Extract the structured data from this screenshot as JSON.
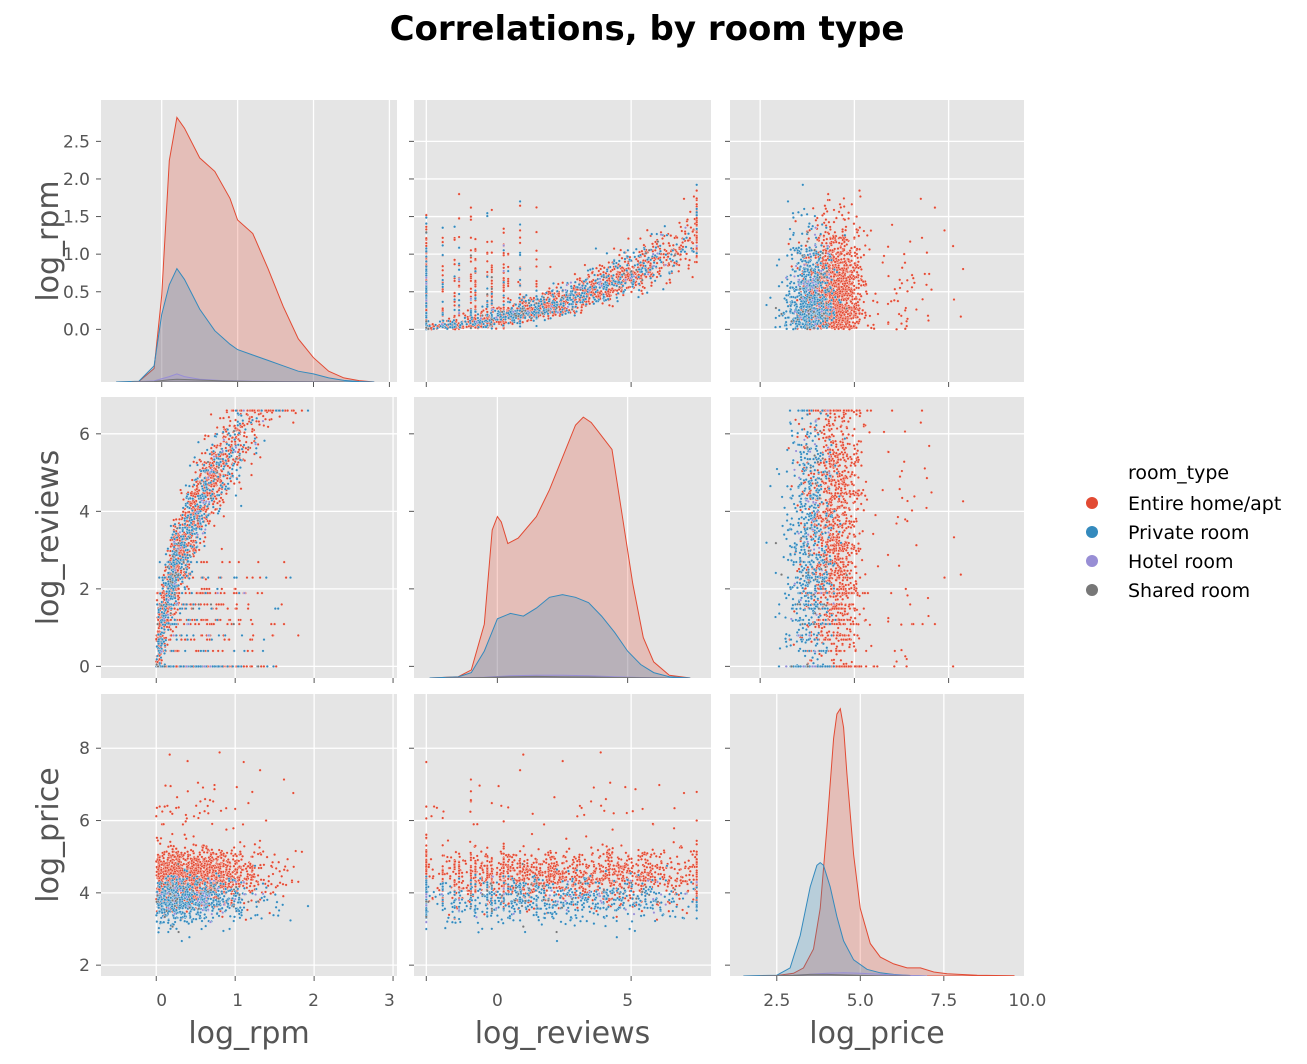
{
  "chart_data": {
    "type": "scatter",
    "title": "Correlations, by room type",
    "variables": [
      "log_rpm",
      "log_reviews",
      "log_price"
    ],
    "diagonal": "kde",
    "off_diagonal": "scatter",
    "grid": true,
    "legend": {
      "title": "room_type",
      "position": "right",
      "entries": [
        {
          "name": "Entire home/apt",
          "color": "#e24a33"
        },
        {
          "name": "Private room",
          "color": "#348abd"
        },
        {
          "name": "Hotel room",
          "color": "#988ed5"
        },
        {
          "name": "Shared room",
          "color": "#777777"
        }
      ]
    },
    "axes": {
      "log_rpm": {
        "range": [
          -0.7,
          3.05
        ],
        "ticks": [
          0,
          1,
          2,
          3
        ],
        "tick_labels": [
          "0",
          "1",
          "2",
          "3"
        ]
      },
      "log_reviews": {
        "range": [
          -0.3,
          6.95
        ],
        "ticks": [
          0,
          2,
          4,
          6
        ],
        "tick_labels": [
          "0",
          "2",
          "4",
          "6"
        ]
      },
      "log_price": {
        "range": [
          1.7,
          9.5
        ],
        "ticks": [
          2,
          4,
          6,
          8
        ],
        "tick_labels": [
          "2",
          "4",
          "6",
          "8"
        ]
      }
    },
    "row_tick_labels": {
      "log_rpm": [
        "0.0",
        "0.5",
        "1.0",
        "1.5",
        "2.0",
        "2.5"
      ],
      "log_reviews": [
        "0",
        "2",
        "4",
        "6"
      ],
      "log_price": [
        "2",
        "4",
        "6",
        "8"
      ]
    },
    "bottom_axes": {
      "log_rpm": {
        "range": [
          -0.8,
          3.1
        ],
        "tick_labels": [
          "0",
          "1",
          "2",
          "3"
        ]
      },
      "log_reviews": {
        "range": [
          -3.2,
          8.2
        ],
        "tick_labels": [
          "0",
          "5"
        ]
      },
      "log_price": {
        "range": [
          1.1,
          9.9
        ],
        "tick_labels": [
          "2.5",
          "5.0",
          "7.5",
          "10.0"
        ]
      }
    },
    "kde": {
      "log_rpm": {
        "ylim": [
          0,
          1.0
        ],
        "series": [
          {
            "name": "Entire home/apt",
            "x": [
              -0.6,
              -0.3,
              -0.1,
              0.0,
              0.1,
              0.2,
              0.3,
              0.5,
              0.7,
              0.9,
              1.0,
              1.2,
              1.4,
              1.6,
              1.8,
              2.0,
              2.2,
              2.4,
              2.6,
              2.8
            ],
            "y": [
              0,
              0.002,
              0.05,
              0.32,
              0.82,
              0.98,
              0.94,
              0.83,
              0.78,
              0.68,
              0.6,
              0.55,
              0.42,
              0.28,
              0.16,
              0.09,
              0.04,
              0.015,
              0.005,
              0
            ]
          },
          {
            "name": "Private room",
            "x": [
              -0.6,
              -0.3,
              -0.1,
              0.0,
              0.1,
              0.2,
              0.3,
              0.5,
              0.7,
              0.9,
              1.0,
              1.2,
              1.4,
              1.6,
              1.8,
              2.0,
              2.2,
              2.4,
              2.6,
              2.8
            ],
            "y": [
              0,
              0.003,
              0.06,
              0.25,
              0.36,
              0.42,
              0.38,
              0.27,
              0.19,
              0.14,
              0.12,
              0.1,
              0.08,
              0.06,
              0.04,
              0.03,
              0.015,
              0.006,
              0.002,
              0
            ]
          },
          {
            "name": "Hotel room",
            "x": [
              -0.4,
              -0.1,
              0.1,
              0.2,
              0.3,
              0.5,
              0.8,
              1.2,
              1.6,
              2.0,
              2.4
            ],
            "y": [
              0,
              0.004,
              0.02,
              0.03,
              0.02,
              0.01,
              0.005,
              0.003,
              0.002,
              0.001,
              0
            ]
          },
          {
            "name": "Shared room",
            "x": [
              -0.4,
              -0.1,
              0.1,
              0.2,
              0.4,
              0.8,
              1.2,
              1.6,
              2.0,
              2.4
            ],
            "y": [
              0,
              0.002,
              0.008,
              0.01,
              0.008,
              0.004,
              0.002,
              0.001,
              0.0005,
              0
            ]
          }
        ]
      },
      "log_reviews": {
        "ylim": [
          0,
          1.0
        ],
        "series": [
          {
            "name": "Entire home/apt",
            "x": [
              -2.6,
              -1.5,
              -1.0,
              -0.5,
              -0.2,
              0.0,
              0.15,
              0.4,
              0.8,
              1.5,
              2.0,
              2.5,
              3.0,
              3.3,
              3.6,
              4.0,
              4.4,
              4.8,
              5.2,
              5.6,
              6.0,
              6.6,
              7.4
            ],
            "y": [
              0,
              0.005,
              0.03,
              0.2,
              0.55,
              0.6,
              0.58,
              0.5,
              0.52,
              0.6,
              0.7,
              0.82,
              0.94,
              0.97,
              0.95,
              0.9,
              0.85,
              0.6,
              0.35,
              0.15,
              0.06,
              0.01,
              0
            ]
          },
          {
            "name": "Private room",
            "x": [
              -2.6,
              -1.5,
              -1.0,
              -0.5,
              0.0,
              0.5,
              1.0,
              1.5,
              2.0,
              2.5,
              3.0,
              3.5,
              4.0,
              4.5,
              5.0,
              5.5,
              6.0,
              6.6,
              7.4
            ],
            "y": [
              0,
              0.004,
              0.02,
              0.1,
              0.22,
              0.24,
              0.23,
              0.26,
              0.3,
              0.31,
              0.3,
              0.28,
              0.23,
              0.17,
              0.1,
              0.05,
              0.02,
              0.005,
              0
            ]
          },
          {
            "name": "Hotel room",
            "x": [
              -2.0,
              -0.5,
              0.5,
              1.5,
              2.5,
              3.5,
              4.5,
              5.5,
              6.5
            ],
            "y": [
              0,
              0.003,
              0.008,
              0.01,
              0.01,
              0.008,
              0.005,
              0.002,
              0
            ]
          },
          {
            "name": "Shared room",
            "x": [
              -2.0,
              -0.5,
              0.5,
              1.5,
              2.5,
              3.5,
              4.5,
              5.5,
              6.5
            ],
            "y": [
              0,
              0.002,
              0.005,
              0.006,
              0.005,
              0.004,
              0.002,
              0.001,
              0
            ]
          }
        ]
      },
      "log_price": {
        "ylim": [
          0,
          1.0
        ],
        "series": [
          {
            "name": "Entire home/apt",
            "x": [
              1.5,
              2.5,
              3.0,
              3.3,
              3.6,
              3.8,
              4.0,
              4.2,
              4.3,
              4.4,
              4.5,
              4.6,
              4.8,
              5.0,
              5.3,
              5.6,
              6.0,
              6.4,
              6.8,
              7.2,
              7.6,
              8.5,
              9.6
            ],
            "y": [
              0,
              0.002,
              0.01,
              0.03,
              0.1,
              0.25,
              0.55,
              0.88,
              0.97,
              0.99,
              0.92,
              0.75,
              0.45,
              0.25,
              0.12,
              0.07,
              0.045,
              0.03,
              0.03,
              0.015,
              0.008,
              0.003,
              0.001
            ]
          },
          {
            "name": "Private room",
            "x": [
              1.5,
              2.5,
              2.9,
              3.2,
              3.5,
              3.7,
              3.8,
              3.9,
              4.1,
              4.3,
              4.5,
              4.8,
              5.2,
              5.6,
              6.0,
              6.5,
              7.0
            ],
            "y": [
              0,
              0.003,
              0.03,
              0.15,
              0.33,
              0.41,
              0.42,
              0.41,
              0.33,
              0.22,
              0.13,
              0.06,
              0.025,
              0.012,
              0.006,
              0.002,
              0
            ]
          },
          {
            "name": "Hotel room",
            "x": [
              2.0,
              3.0,
              4.0,
              4.5,
              5.0,
              6.0,
              7.0
            ],
            "y": [
              0,
              0.003,
              0.01,
              0.012,
              0.01,
              0.004,
              0
            ]
          },
          {
            "name": "Shared room",
            "x": [
              2.0,
              3.0,
              3.5,
              4.0,
              4.5,
              5.5,
              6.5
            ],
            "y": [
              0,
              0.003,
              0.006,
              0.006,
              0.004,
              0.001,
              0
            ]
          }
        ]
      }
    }
  }
}
